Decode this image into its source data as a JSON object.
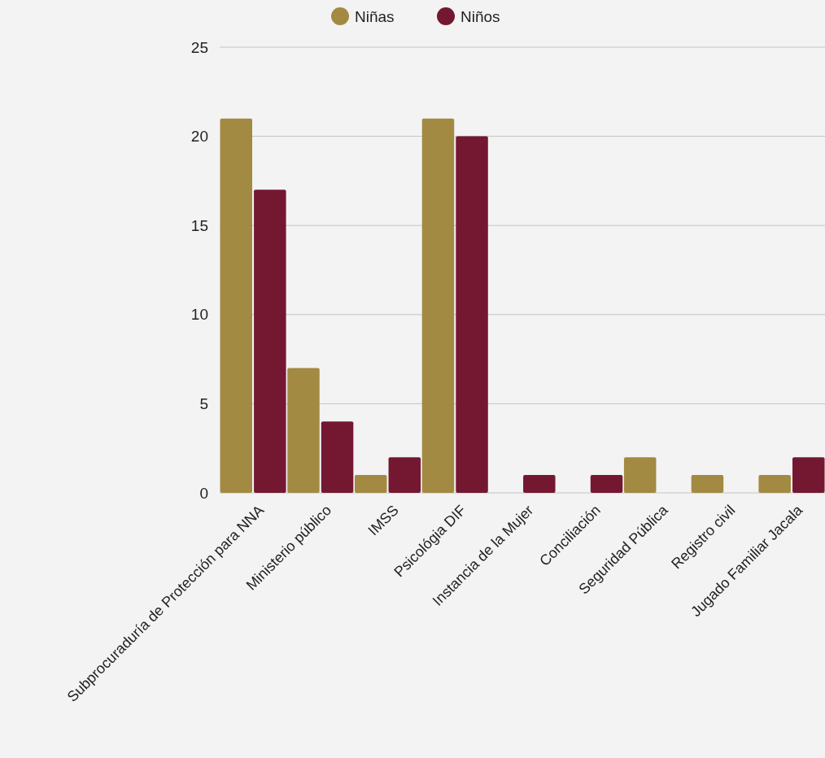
{
  "chart_data": {
    "type": "bar",
    "categories": [
      "Subprocuraduría de Protección para NNA",
      "Ministerio público",
      "IMSS",
      "Psicológia DIF",
      "Instancia de la Mujer",
      "Conciliación",
      "Seguridad Pública",
      "Registro civil",
      "Jugado Familiar Jacala"
    ],
    "series": [
      {
        "name": "Niñas",
        "color": "#a38a42",
        "values": [
          21,
          7,
          1,
          21,
          0,
          0,
          2,
          1,
          1
        ]
      },
      {
        "name": "Niños",
        "color": "#741832",
        "values": [
          17,
          4,
          2,
          20,
          1,
          1,
          0,
          0,
          2
        ]
      }
    ],
    "ylim": [
      0,
      25
    ],
    "yticks": [
      0,
      5,
      10,
      15,
      20,
      25
    ],
    "grid": "y",
    "legend": "top"
  }
}
